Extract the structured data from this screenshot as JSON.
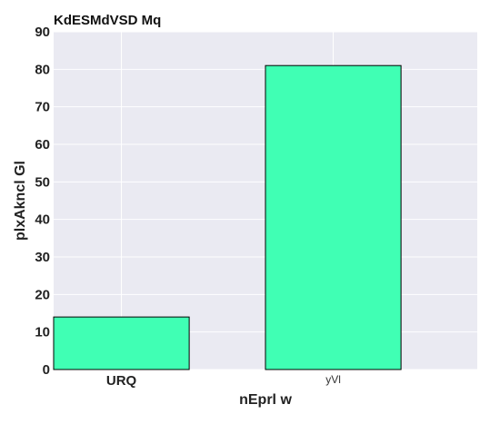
{
  "chart_data": {
    "type": "bar",
    "title": "KdESMdVSD Mq",
    "xlabel": "nEprl w",
    "ylabel": "plxAkncl Gl",
    "categories": [
      "URQ",
      "yVl"
    ],
    "values": [
      14,
      81
    ],
    "ylim": [
      0,
      90
    ],
    "yticks": [
      0,
      10,
      20,
      30,
      40,
      50,
      60,
      70,
      80,
      90
    ],
    "grid": true,
    "colors": {
      "bar_fill": "#40ffb4",
      "bar_edge": "#000000",
      "plot_bg": "#eaeaf2",
      "grid": "#ffffff"
    }
  }
}
